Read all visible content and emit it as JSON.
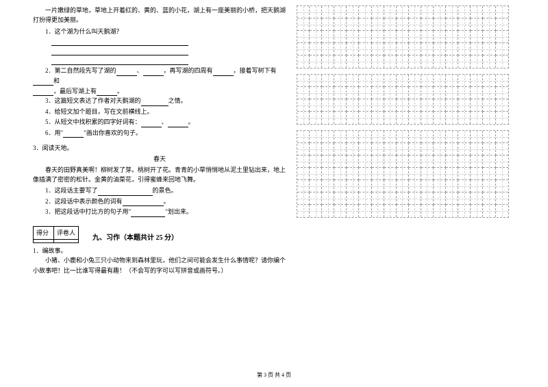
{
  "passage1": {
    "intro": "一片嫩绿的草地，草地上开着红的、黄的、蓝的小花，湖上有一座美丽的小桥，把天鹅湖打扮得更加美丽。",
    "q1": "1．这个湖为什么叫天鹅湖？",
    "q2_pre": "2．第二自然段先写了湖的",
    "q2_mid1": "，再写湖的四周有",
    "q2_mid2": "，接着写树下有",
    "q2_mid3": "和",
    "q2_end": "，最后写湖上有",
    "q3_pre": "3．这篇短文表达了作者对天鹅湖的",
    "q3_end": "之情。",
    "q4": "4．给短文加个题目，写在文前横线上。",
    "q5_pre": "5．从短文中找积累的四字好词有：",
    "q6_pre": "6．用\"",
    "q6_end": "\"画出你喜欢的句子。"
  },
  "passage2": {
    "num": "3．阅读天地。",
    "title": "春天",
    "text": "春天的田野真美啊！柳树发了芽。桃树开了花。青青的小草悄悄地从泥土里钻出来，地上像插满了密密的松针。金黄的油菜花，引得蜜蜂来回地飞舞。",
    "q1_pre": "1．这段话主要写了",
    "q1_end": "的景色。",
    "q2_pre": "2．这段话中表示颜色的词有",
    "q3_pre": "3．把这段话中打比方的句子用\"",
    "q3_end": "\"划出来。"
  },
  "section9": {
    "score_label": "得分",
    "reviewer_label": "评卷人",
    "title": "九、习作（本题共计 25 分）",
    "q_num": "1．编故事。",
    "text": "小猪、小鹿和小兔三只小动物来到森林里玩，他们之间可能会发生什么事情呢？请你编个小故事吧！比一比谁写得最有趣！（不会写的字可以写拼音或画符号。）"
  },
  "grid": {
    "rows_box1": 5,
    "rows_box2": 4,
    "rows_box3": 7,
    "cols": 17
  },
  "footer": "第 3 页 共 4 页"
}
